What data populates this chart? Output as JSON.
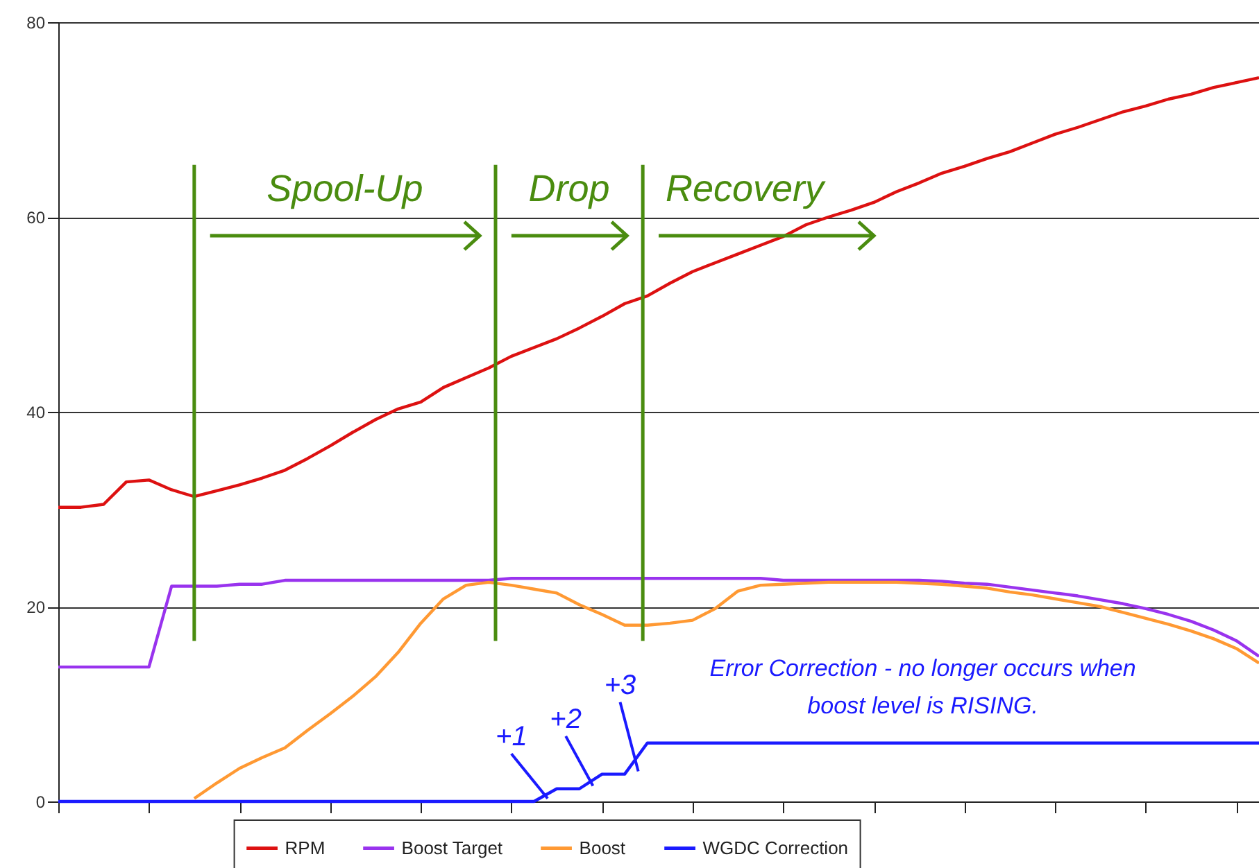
{
  "chart_data": {
    "type": "line",
    "categories": [
      null,
      null,
      null,
      null,
      null,
      null,
      null,
      null,
      null,
      null,
      null,
      null,
      null,
      null,
      null,
      null,
      null,
      null,
      null,
      null,
      null,
      null,
      null,
      null,
      null,
      null,
      null,
      null,
      null,
      null,
      null,
      null,
      null,
      null,
      null,
      null,
      null,
      null,
      null,
      null,
      null,
      null,
      null,
      null,
      null,
      null,
      null,
      null,
      null,
      null,
      null,
      null,
      null,
      null
    ],
    "series": [
      {
        "name": "RPM",
        "color": "#dd1111",
        "values": [
          30.2,
          30.2,
          30.5,
          32.8,
          33.0,
          32.0,
          31.3,
          31.9,
          32.5,
          33.2,
          34.0,
          35.2,
          36.5,
          37.9,
          39.2,
          40.3,
          41.0,
          42.5,
          43.5,
          44.5,
          45.7,
          46.6,
          47.5,
          48.6,
          49.8,
          51.1,
          51.9,
          53.2,
          54.4,
          55.3,
          56.2,
          57.1,
          58.0,
          59.2,
          60.0,
          60.7,
          61.5,
          62.6,
          63.5,
          64.5,
          65.2,
          66.0,
          66.7,
          67.6,
          68.5,
          69.2,
          70.0,
          70.8,
          71.4,
          72.1,
          72.6,
          73.3,
          73.8,
          74.3
        ]
      },
      {
        "name": "Boost Target",
        "color": "#9933ee",
        "values": [
          13.8,
          13.8,
          13.8,
          13.8,
          13.8,
          22.1,
          22.1,
          22.1,
          22.3,
          22.3,
          22.7,
          22.7,
          22.7,
          22.7,
          22.7,
          22.7,
          22.7,
          22.7,
          22.7,
          22.7,
          22.9,
          22.9,
          22.9,
          22.9,
          22.9,
          22.9,
          22.9,
          22.9,
          22.9,
          22.9,
          22.9,
          22.9,
          22.7,
          22.7,
          22.7,
          22.7,
          22.7,
          22.7,
          22.7,
          22.6,
          22.4,
          22.3,
          22.0,
          21.7,
          21.4,
          21.1,
          20.7,
          20.3,
          19.8,
          19.2,
          18.5,
          17.6,
          16.5,
          14.9
        ]
      },
      {
        "name": "Boost",
        "color": "#ff9933",
        "values": [
          null,
          null,
          null,
          null,
          null,
          null,
          0.3,
          1.9,
          3.4,
          4.5,
          5.5,
          7.3,
          9.0,
          10.8,
          12.8,
          15.3,
          18.3,
          20.8,
          22.2,
          22.5,
          22.2,
          21.8,
          21.4,
          20.2,
          19.2,
          18.1,
          18.1,
          18.3,
          18.6,
          19.8,
          21.6,
          22.2,
          22.3,
          22.4,
          22.5,
          22.5,
          22.5,
          22.5,
          22.4,
          22.3,
          22.1,
          21.9,
          21.5,
          21.2,
          20.8,
          20.4,
          20.0,
          19.4,
          18.8,
          18.2,
          17.5,
          16.7,
          15.7,
          14.2
        ]
      },
      {
        "name": "WGDC Correction",
        "color": "#1a1aff",
        "values": [
          0,
          0,
          0,
          0,
          0,
          0,
          0,
          0,
          0,
          0,
          0,
          0,
          0,
          0,
          0,
          0,
          0,
          0,
          0,
          0,
          0,
          0,
          1.3,
          1.3,
          2.8,
          2.8,
          6.0,
          6.0,
          6.0,
          6.0,
          6.0,
          6.0,
          6.0,
          6.0,
          6.0,
          6.0,
          6.0,
          6.0,
          6.0,
          6.0,
          6.0,
          6.0,
          6.0,
          6.0,
          6.0,
          6.0,
          6.0,
          6.0,
          6.0,
          6.0,
          6.0,
          6.0,
          6.0,
          6.0
        ]
      }
    ],
    "ylim": [
      0,
      80
    ],
    "yticks": [
      0,
      20,
      40,
      60,
      80
    ],
    "grid": "y",
    "legend": "bottom",
    "tick_labels": "y",
    "line_style": "solid",
    "annotations": [
      "Spool-Up",
      "Drop",
      "Recovery",
      "+1",
      "+2",
      "+3",
      "Error Correction - no longer occurs when\nboost level is RISING."
    ]
  }
}
